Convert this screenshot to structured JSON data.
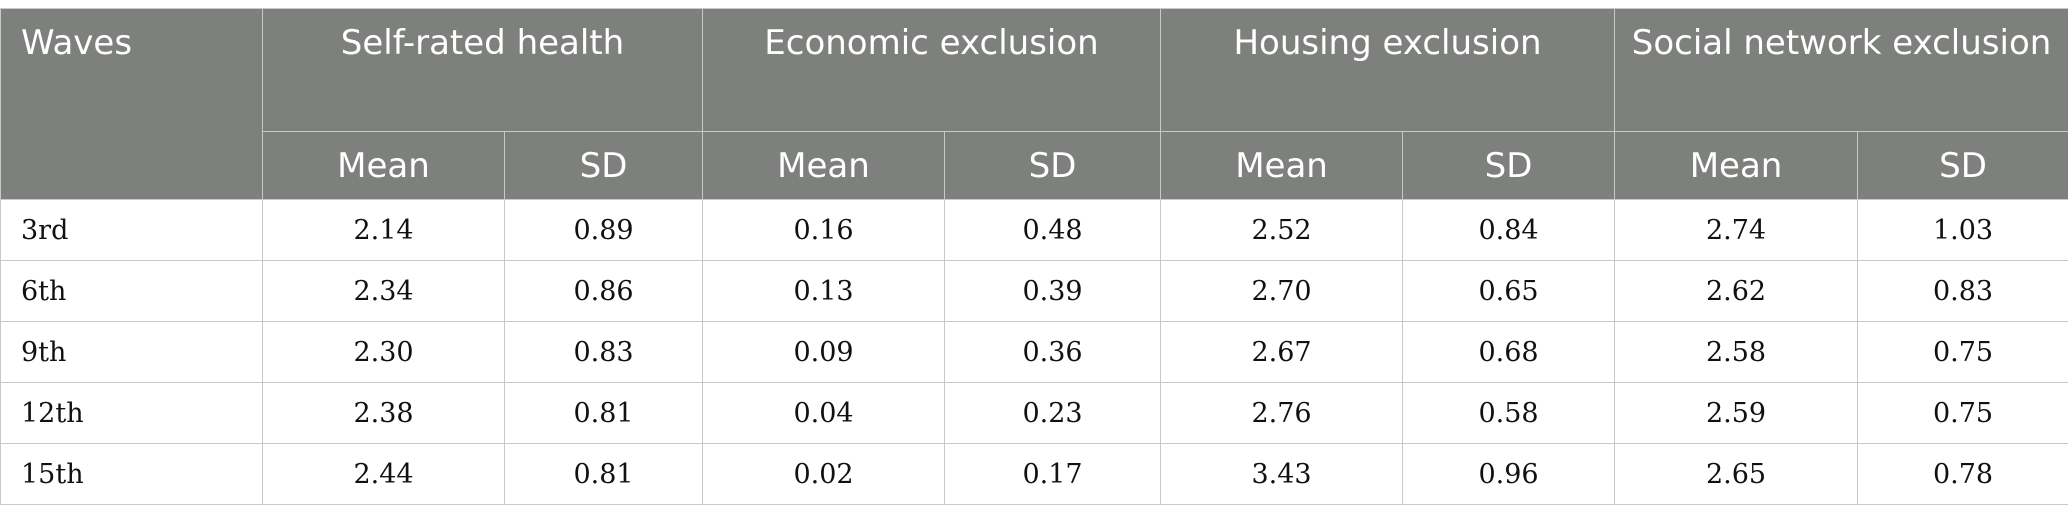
{
  "table": {
    "waves_header": "Waves",
    "groups": [
      "Self-rated health",
      "Economic exclusion",
      "Housing exclusion",
      "Social network exclusion"
    ],
    "sub_headers": {
      "mean": "Mean",
      "sd": "SD"
    },
    "rows": [
      {
        "wave": "3rd",
        "values": [
          "2.14",
          "0.89",
          "0.16",
          "0.48",
          "2.52",
          "0.84",
          "2.74",
          "1.03"
        ]
      },
      {
        "wave": "6th",
        "values": [
          "2.34",
          "0.86",
          "0.13",
          "0.39",
          "2.70",
          "0.65",
          "2.62",
          "0.83"
        ]
      },
      {
        "wave": "9th",
        "values": [
          "2.30",
          "0.83",
          "0.09",
          "0.36",
          "2.67",
          "0.68",
          "2.58",
          "0.75"
        ]
      },
      {
        "wave": "12th",
        "values": [
          "2.38",
          "0.81",
          "0.04",
          "0.23",
          "2.76",
          "0.58",
          "2.59",
          "0.75"
        ]
      },
      {
        "wave": "15th",
        "values": [
          "2.44",
          "0.81",
          "0.02",
          "0.17",
          "3.43",
          "0.96",
          "2.65",
          "0.78"
        ]
      }
    ],
    "colors": {
      "header_bg": "#7e807d",
      "header_text": "#ffffff",
      "border": "#c8c8c8"
    }
  }
}
